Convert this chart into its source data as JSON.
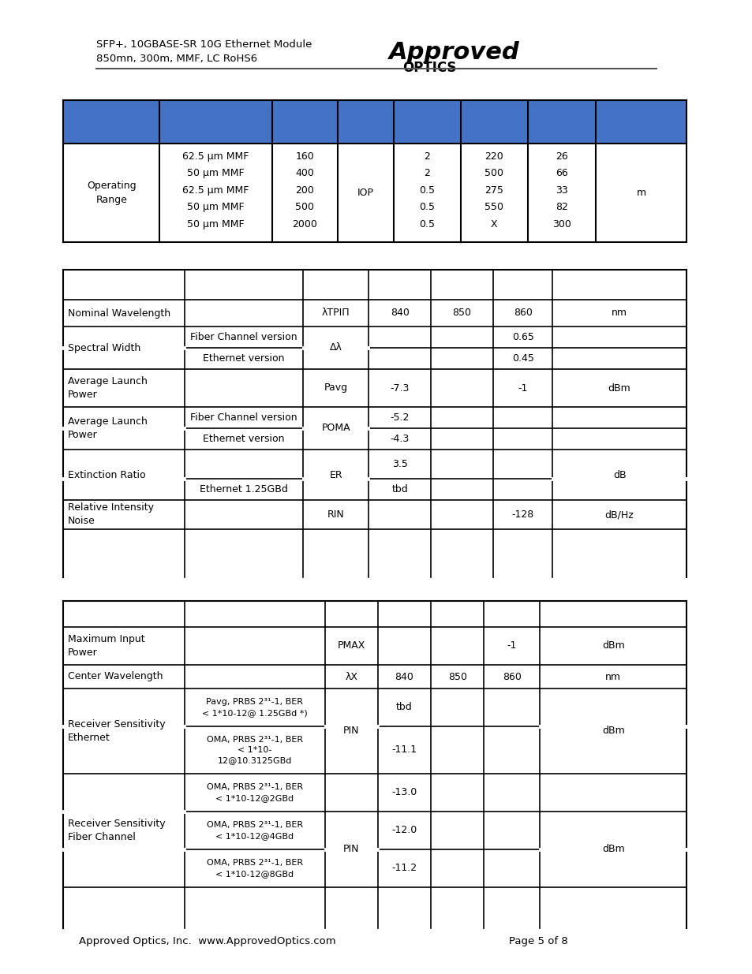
{
  "blue_color": "#4472C4",
  "header_line1": "SFP+, 10GBASE-SR 10G Ethernet Module",
  "header_line2": "850mn, 300m, MMF, LC RoHS6",
  "footer_left": "Approved Optics, Inc.  www.ApprovedOptics.com",
  "footer_right": "Page 5 of 8"
}
